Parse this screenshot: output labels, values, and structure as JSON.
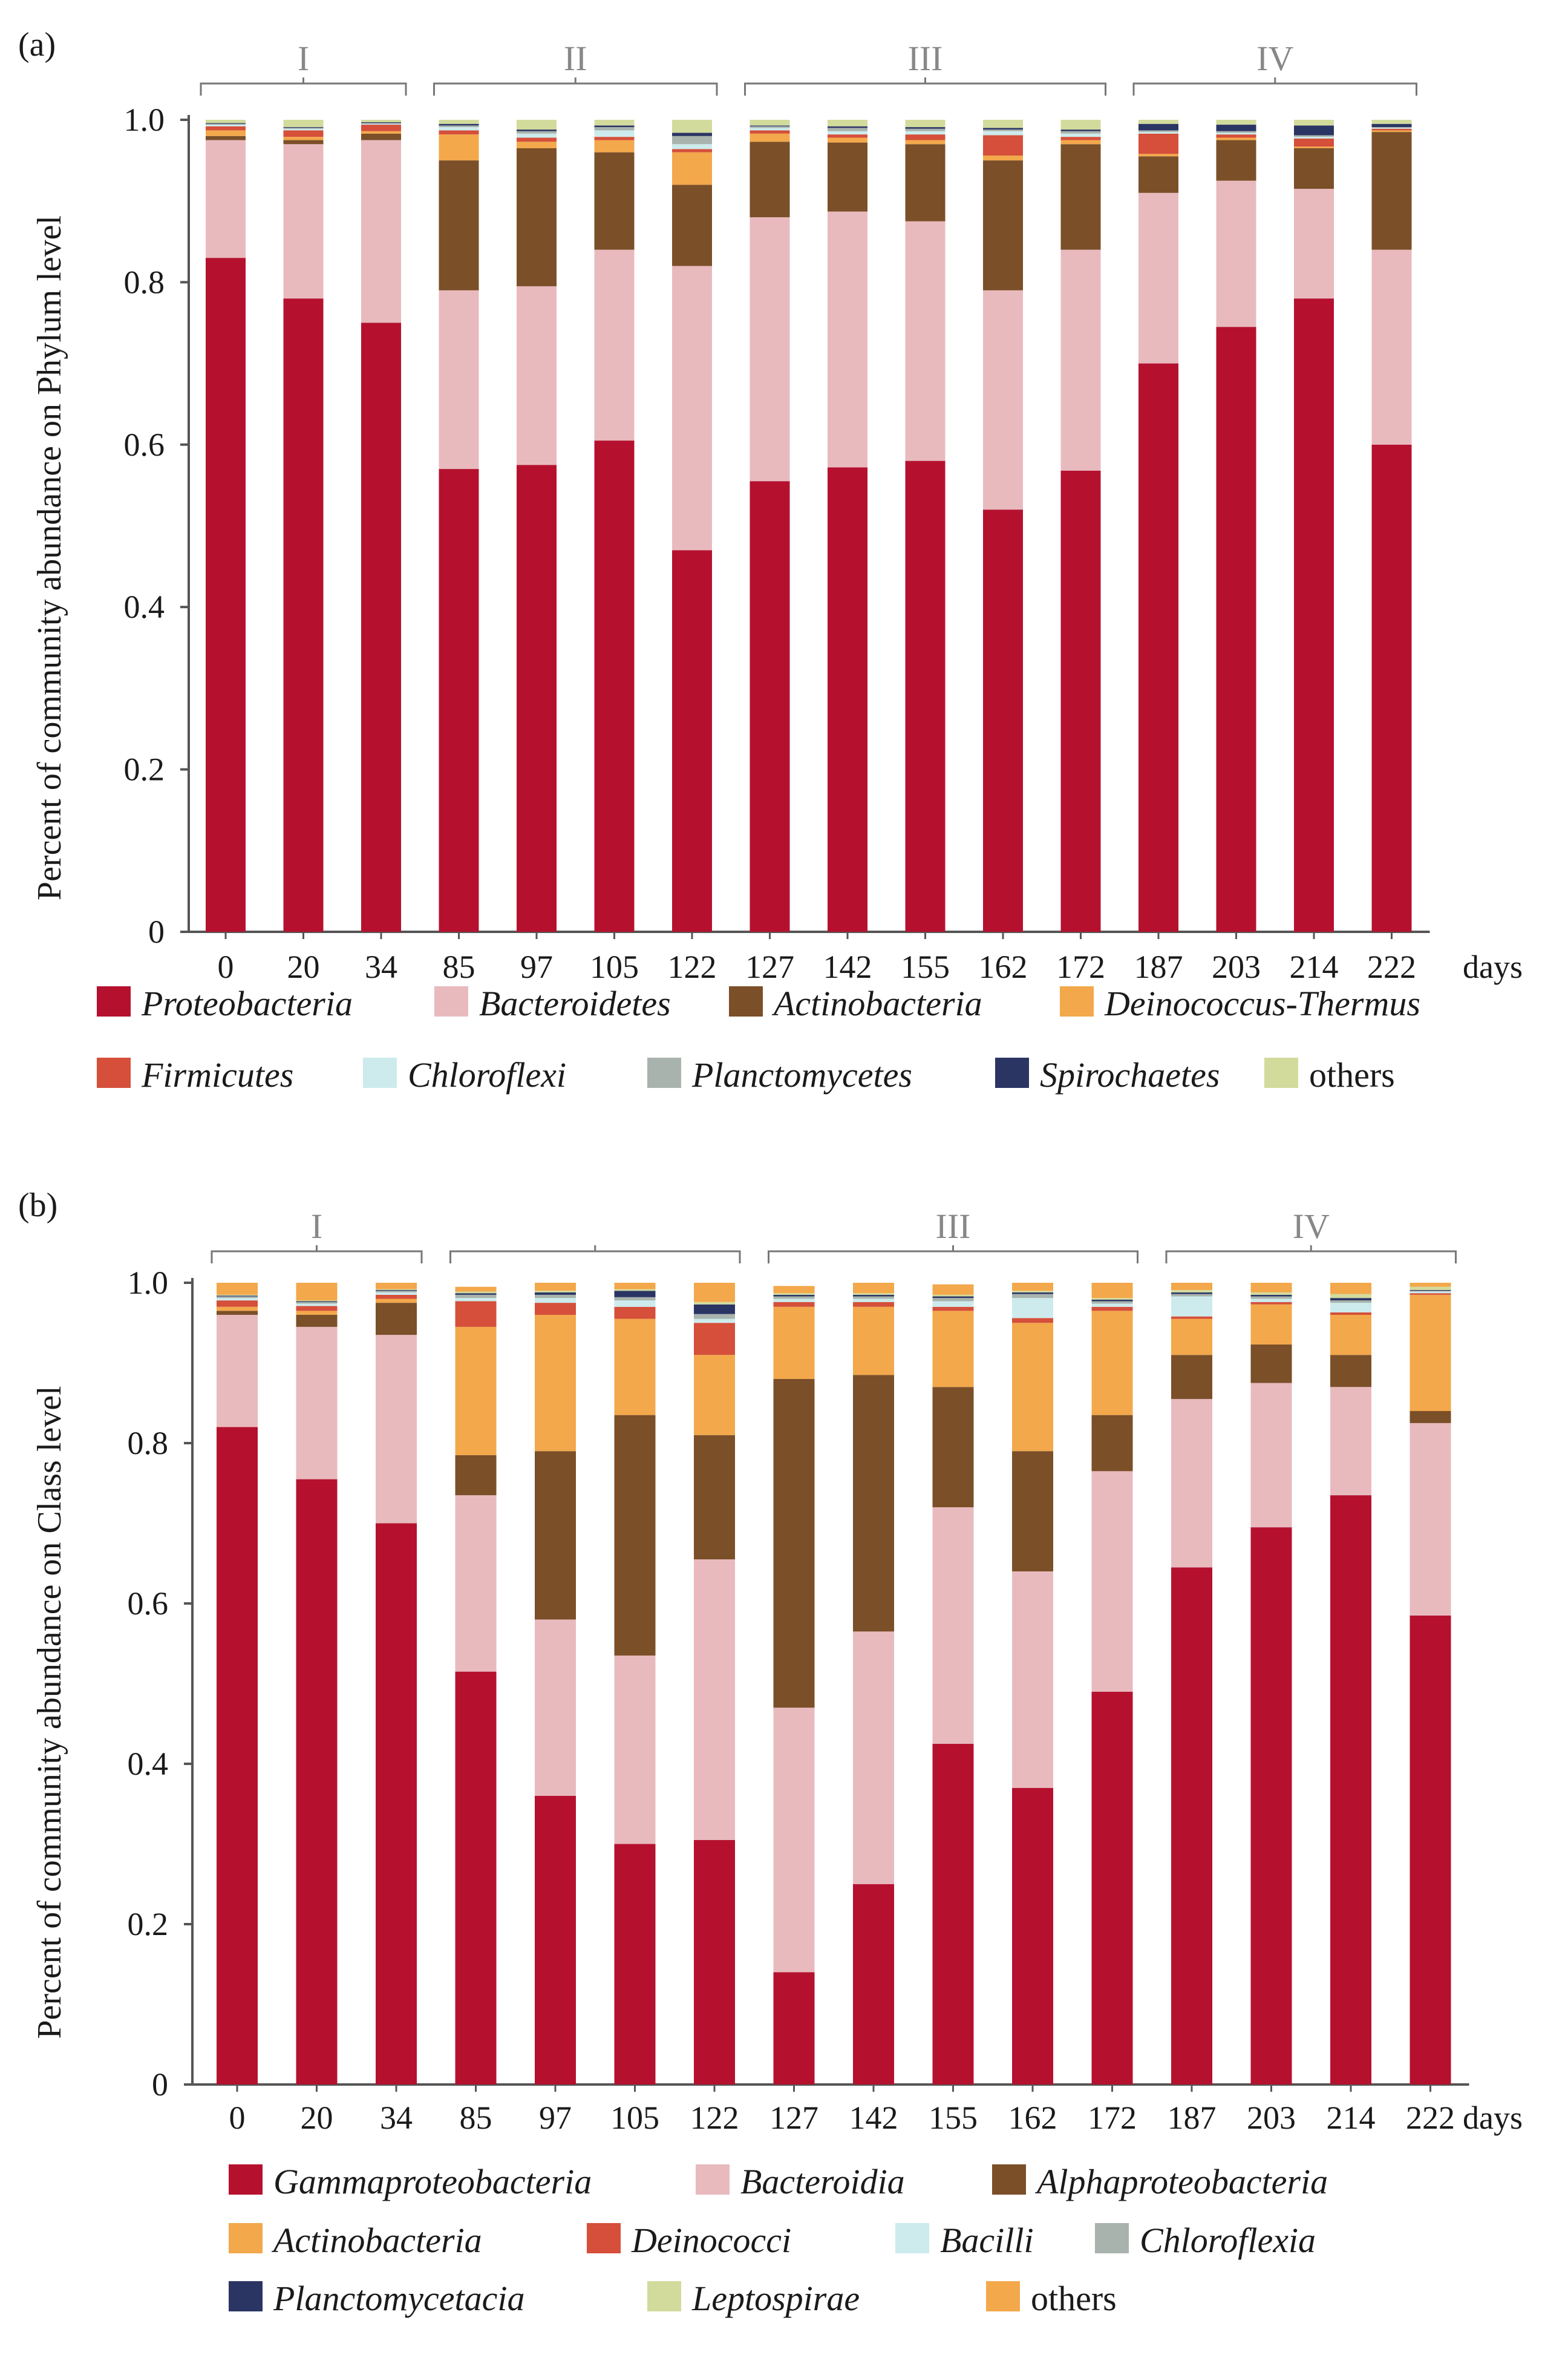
{
  "chart_data": [
    {
      "type": "bar",
      "panel": "(a)",
      "stacked": true,
      "ylabel": "Percent of community abundance on Phylum level",
      "xunit": "days",
      "ylim": [
        0,
        1.0
      ],
      "yticks": [
        "0",
        "0.2",
        "0.4",
        "0.6",
        "0.8",
        "1.0"
      ],
      "categories": [
        "0",
        "20",
        "34",
        "85",
        "97",
        "105",
        "122",
        "127",
        "142",
        "155",
        "162",
        "172",
        "187",
        "203",
        "214",
        "222"
      ],
      "groups": [
        {
          "label": "I",
          "start": 0,
          "end": 2
        },
        {
          "label": "II",
          "start": 3,
          "end": 6
        },
        {
          "label": "III",
          "start": 7,
          "end": 11
        },
        {
          "label": "IV",
          "start": 12,
          "end": 15
        }
      ],
      "series": [
        {
          "name": "Proteobacteria",
          "color": "#B5112F",
          "italic": true,
          "values": [
            0.83,
            0.78,
            0.75,
            0.57,
            0.575,
            0.605,
            0.47,
            0.555,
            0.572,
            0.58,
            0.52,
            0.568,
            0.7,
            0.745,
            0.78,
            0.6
          ]
        },
        {
          "name": "Bacteroidetes",
          "color": "#E8BABE",
          "italic": true,
          "values": [
            0.145,
            0.19,
            0.225,
            0.22,
            0.22,
            0.235,
            0.35,
            0.325,
            0.315,
            0.295,
            0.27,
            0.272,
            0.21,
            0.18,
            0.135,
            0.24
          ]
        },
        {
          "name": "Actinobacteria",
          "color": "#7B4F28",
          "italic": true,
          "values": [
            0.005,
            0.005,
            0.008,
            0.16,
            0.17,
            0.12,
            0.1,
            0.093,
            0.085,
            0.095,
            0.16,
            0.13,
            0.045,
            0.05,
            0.05,
            0.145
          ]
        },
        {
          "name": "Deinococcus-Thermus",
          "color": "#F3A84B",
          "italic": true,
          "values": [
            0.007,
            0.004,
            0.003,
            0.032,
            0.008,
            0.015,
            0.04,
            0.01,
            0.006,
            0.005,
            0.006,
            0.005,
            0.003,
            0.003,
            0.002,
            0.002
          ]
        },
        {
          "name": "Firmicutes",
          "color": "#D54F3A",
          "italic": true,
          "values": [
            0.005,
            0.008,
            0.008,
            0.005,
            0.005,
            0.004,
            0.004,
            0.004,
            0.004,
            0.007,
            0.025,
            0.004,
            0.025,
            0.004,
            0.01,
            0.002
          ]
        },
        {
          "name": "Chloroflexi",
          "color": "#CDEBEC",
          "italic": true,
          "values": [
            0.002,
            0.002,
            0.001,
            0.004,
            0.005,
            0.008,
            0.006,
            0.003,
            0.004,
            0.004,
            0.005,
            0.004,
            0.002,
            0.002,
            0.002,
            0.001
          ]
        },
        {
          "name": "Planctomycetes",
          "color": "#A8B3AD",
          "italic": true,
          "values": [
            0.001,
            0.001,
            0.001,
            0.002,
            0.003,
            0.004,
            0.01,
            0.002,
            0.004,
            0.003,
            0.002,
            0.003,
            0.002,
            0.002,
            0.002,
            0.001
          ]
        },
        {
          "name": "Spirochaetes",
          "color": "#2B3564",
          "italic": true,
          "values": [
            0.001,
            0.001,
            0.001,
            0.002,
            0.002,
            0.002,
            0.004,
            0.001,
            0.002,
            0.002,
            0.002,
            0.002,
            0.008,
            0.008,
            0.012,
            0.004
          ]
        },
        {
          "name": "others",
          "color": "#D2DB9C",
          "italic": false,
          "values": [
            0.004,
            0.009,
            0.003,
            0.005,
            0.012,
            0.007,
            0.016,
            0.007,
            0.008,
            0.009,
            0.01,
            0.012,
            0.005,
            0.006,
            0.007,
            0.005
          ]
        }
      ]
    },
    {
      "type": "bar",
      "panel": "(b)",
      "stacked": true,
      "ylabel": "Percent of community abundance on Class level",
      "xunit": "days",
      "ylim": [
        0,
        1.0
      ],
      "yticks": [
        "0",
        "0.2",
        "0.4",
        "0.6",
        "0.8",
        "1.0"
      ],
      "categories": [
        "0",
        "20",
        "34",
        "85",
        "97",
        "105",
        "122",
        "127",
        "142",
        "155",
        "162",
        "172",
        "187",
        "203",
        "214",
        "222"
      ],
      "groups": [
        {
          "label": "I",
          "start": 0,
          "end": 2
        },
        {
          "label": "",
          "start": 3,
          "end": 6
        },
        {
          "label": "III",
          "start": 7,
          "end": 11
        },
        {
          "label": "IV",
          "start": 12,
          "end": 15
        }
      ],
      "series": [
        {
          "name": "Gammaproteobacteria",
          "color": "#B5112F",
          "italic": true,
          "values": [
            0.82,
            0.755,
            0.7,
            0.515,
            0.36,
            0.3,
            0.305,
            0.14,
            0.25,
            0.425,
            0.37,
            0.49,
            0.645,
            0.695,
            0.735,
            0.585
          ]
        },
        {
          "name": "Bacteroidia",
          "color": "#E8BABE",
          "italic": true,
          "values": [
            0.14,
            0.19,
            0.235,
            0.22,
            0.22,
            0.235,
            0.35,
            0.33,
            0.315,
            0.295,
            0.27,
            0.275,
            0.21,
            0.18,
            0.135,
            0.24
          ]
        },
        {
          "name": "Alphaproteobacteria",
          "color": "#7B4F28",
          "italic": true,
          "values": [
            0.005,
            0.015,
            0.04,
            0.05,
            0.21,
            0.3,
            0.155,
            0.41,
            0.32,
            0.15,
            0.15,
            0.07,
            0.055,
            0.048,
            0.04,
            0.015
          ]
        },
        {
          "name": "Actinobacteria",
          "color": "#F3A84B",
          "italic": true,
          "values": [
            0.005,
            0.005,
            0.005,
            0.16,
            0.17,
            0.12,
            0.1,
            0.09,
            0.085,
            0.095,
            0.16,
            0.13,
            0.045,
            0.05,
            0.05,
            0.145
          ]
        },
        {
          "name": "Deinococci",
          "color": "#D54F3A",
          "italic": true,
          "values": [
            0.008,
            0.006,
            0.005,
            0.032,
            0.015,
            0.015,
            0.04,
            0.006,
            0.006,
            0.005,
            0.006,
            0.005,
            0.003,
            0.003,
            0.003,
            0.002
          ]
        },
        {
          "name": "Bacilli",
          "color": "#CDEBEC",
          "italic": true,
          "values": [
            0.003,
            0.003,
            0.003,
            0.004,
            0.006,
            0.008,
            0.005,
            0.004,
            0.004,
            0.007,
            0.025,
            0.004,
            0.025,
            0.004,
            0.012,
            0.002
          ]
        },
        {
          "name": "Chloroflexia",
          "color": "#A8B3AD",
          "italic": true,
          "values": [
            0.002,
            0.002,
            0.002,
            0.004,
            0.004,
            0.004,
            0.006,
            0.003,
            0.003,
            0.004,
            0.005,
            0.003,
            0.003,
            0.003,
            0.003,
            0.001
          ]
        },
        {
          "name": "Planctomycetacia",
          "color": "#2B3564",
          "italic": true,
          "values": [
            0.001,
            0.001,
            0.001,
            0.002,
            0.003,
            0.008,
            0.012,
            0.002,
            0.002,
            0.002,
            0.002,
            0.002,
            0.002,
            0.002,
            0.003,
            0.001
          ]
        },
        {
          "name": "Leptospirae",
          "color": "#D2DB9C",
          "italic": true,
          "values": [
            0.001,
            0.001,
            0.001,
            0.002,
            0.002,
            0.002,
            0.003,
            0.002,
            0.002,
            0.002,
            0.002,
            0.002,
            0.003,
            0.003,
            0.005,
            0.004
          ]
        },
        {
          "name": "others",
          "color": "#F3A84B",
          "italic": false,
          "values": [
            0.015,
            0.022,
            0.008,
            0.006,
            0.01,
            0.008,
            0.024,
            0.009,
            0.013,
            0.013,
            0.01,
            0.019,
            0.009,
            0.012,
            0.014,
            0.005
          ]
        }
      ]
    }
  ]
}
